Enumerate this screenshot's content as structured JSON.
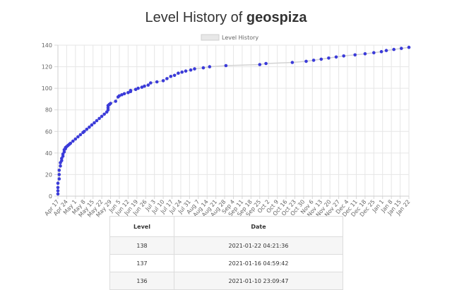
{
  "header": {
    "title_prefix": "Level History of ",
    "username": "geospiza"
  },
  "chart_data": {
    "type": "line",
    "legend": "Level History",
    "legend_placement": "top-center",
    "grid": true,
    "ylim": [
      0,
      140
    ],
    "y_ticks": [
      0,
      20,
      40,
      60,
      80,
      100,
      120,
      140
    ],
    "x_range": [
      "2020-04-17",
      "2021-01-22"
    ],
    "x_ticks": [
      "Apr 17",
      "Apr 24",
      "May 1",
      "May 8",
      "May 15",
      "May 22",
      "May 29",
      "Jun 5",
      "Jun 12",
      "Jun 19",
      "Jun 26",
      "Jul 3",
      "Jul 10",
      "Jul 17",
      "Jul 24",
      "Jul 31",
      "Aug 7",
      "Aug 14",
      "Aug 21",
      "Aug 28",
      "Sep 4",
      "Sep 11",
      "Sep 18",
      "Sep 25",
      "Oct 2",
      "Oct 9",
      "Oct 16",
      "Oct 23",
      "Oct 30",
      "Nov 6",
      "Nov 13",
      "Nov 20",
      "Nov 27",
      "Dec 4",
      "Dec 11",
      "Dec 18",
      "Dec 25",
      "Jan 1",
      "Jan 8",
      "Jan 15",
      "Jan 22"
    ],
    "line_color": "#d3d3d3",
    "point_color": "#3b3bd9",
    "series": [
      {
        "x": [
          "2020-04-17",
          "2020-04-17",
          "2020-04-17",
          "2020-04-17",
          "2020-04-18",
          "2020-04-18",
          "2020-04-18",
          "2020-04-19",
          "2020-04-19",
          "2020-04-20",
          "2020-04-20",
          "2020-04-21",
          "2020-04-21",
          "2020-04-22",
          "2020-04-22",
          "2020-04-23",
          "2020-04-23",
          "2020-04-24",
          "2020-04-25",
          "2020-04-26",
          "2020-04-27",
          "2020-04-29",
          "2020-05-01",
          "2020-05-03",
          "2020-05-05",
          "2020-05-07",
          "2020-05-08",
          "2020-05-10",
          "2020-05-12",
          "2020-05-14",
          "2020-05-16",
          "2020-05-18",
          "2020-05-20",
          "2020-05-22",
          "2020-05-24",
          "2020-05-26",
          "2020-05-27",
          "2020-05-27",
          "2020-05-27",
          "2020-05-28",
          "2020-05-28",
          "2020-05-29",
          "2020-06-02",
          "2020-06-04",
          "2020-06-05",
          "2020-06-07",
          "2020-06-09",
          "2020-06-12",
          "2020-06-14",
          "2020-06-14",
          "2020-06-18",
          "2020-06-20",
          "2020-06-23",
          "2020-06-25",
          "2020-06-28",
          "2020-06-30",
          "2020-07-05",
          "2020-07-10",
          "2020-07-13",
          "2020-07-16",
          "2020-07-19",
          "2020-07-22",
          "2020-07-25",
          "2020-07-28",
          "2020-08-01",
          "2020-08-04",
          "2020-08-11",
          "2020-08-16",
          "2020-08-29",
          "2020-09-25",
          "2020-09-30",
          "2020-10-21",
          "2020-11-01",
          "2020-11-07",
          "2020-11-13",
          "2020-11-19",
          "2020-11-25",
          "2020-12-01",
          "2020-12-10",
          "2020-12-18",
          "2020-12-25",
          "2020-12-31",
          "2021-01-04",
          "2021-01-10",
          "2021-01-16",
          "2021-01-22"
        ],
        "y": [
          2,
          5,
          8,
          12,
          16,
          20,
          24,
          28,
          31,
          33,
          35,
          37,
          39,
          41,
          43,
          44,
          45,
          46,
          47,
          48,
          49,
          51,
          53,
          55,
          57,
          59,
          60,
          62,
          64,
          66,
          68,
          70,
          72,
          74,
          76,
          78,
          80,
          82,
          84,
          85,
          85,
          86,
          88,
          92,
          93,
          94,
          95,
          96,
          97,
          98,
          99,
          100,
          101,
          102,
          103,
          105,
          106,
          107,
          109,
          111,
          112,
          114,
          115,
          116,
          117,
          118,
          119,
          120,
          121,
          122,
          123,
          124,
          125,
          126,
          127,
          128,
          129,
          130,
          131,
          132,
          133,
          134,
          135,
          136,
          137,
          138
        ]
      }
    ]
  },
  "table": {
    "headers": {
      "level": "Level",
      "date": "Date"
    },
    "rows": [
      {
        "level": "138",
        "date": "2021-01-22 04:21:36"
      },
      {
        "level": "137",
        "date": "2021-01-16 04:59:42"
      },
      {
        "level": "136",
        "date": "2021-01-10 23:09:47"
      }
    ]
  }
}
